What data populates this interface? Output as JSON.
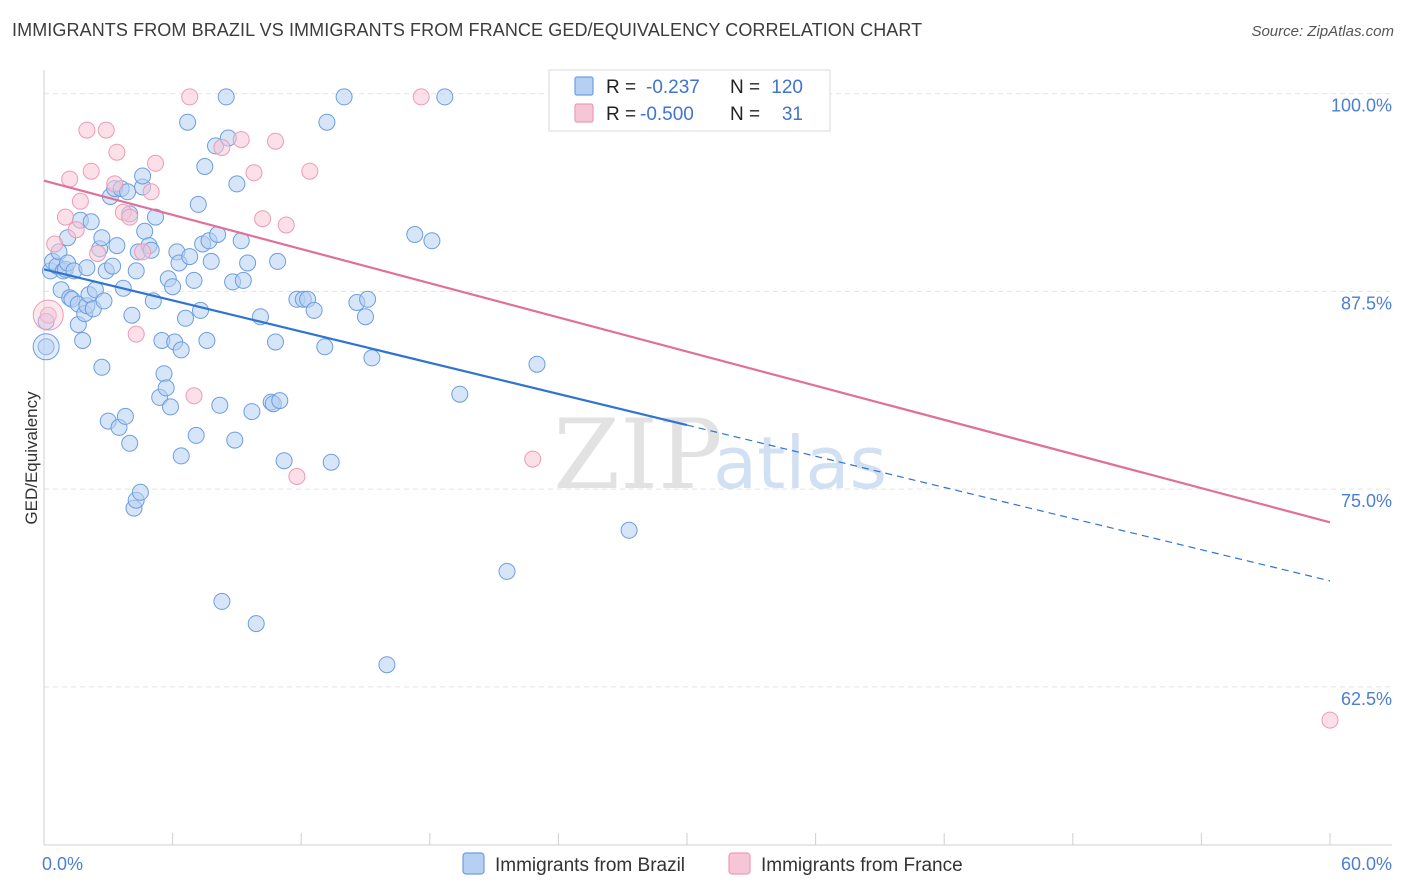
{
  "chart_data": {
    "type": "scatter",
    "title": "IMMIGRANTS FROM BRAZIL VS IMMIGRANTS FROM FRANCE GED/EQUIVALENCY CORRELATION CHART",
    "source": "Source: ZipAtlas.com",
    "xlabel": "",
    "ylabel": "GED/Equivalency",
    "xlim": [
      0,
      60
    ],
    "ylim": [
      52.5,
      101.5
    ],
    "x_tick_labels": [
      "0.0%",
      "60.0%"
    ],
    "y_ticks": [
      62.5,
      75.0,
      87.5,
      100.0
    ],
    "y_tick_labels": [
      "62.5%",
      "75.0%",
      "87.5%",
      "100.0%"
    ],
    "grid": true,
    "watermark": [
      "ZIP",
      "atlas"
    ],
    "legend_position": "bottom",
    "stats_box": {
      "r_label": "R =",
      "n_label": "N =",
      "rows": [
        {
          "r": "-0.237",
          "n": "120"
        },
        {
          "r": "-0.500",
          "n": "31"
        }
      ]
    },
    "series": [
      {
        "name": "Immigrants from Brazil",
        "color": "#6c9ee0",
        "fill": "#b7d0f2",
        "trend": {
          "x": [
            0,
            30,
            60
          ],
          "y": [
            88.9,
            78.8,
            69.2
          ],
          "solid_until": 30,
          "color": "#2f74d0"
        },
        "points": [
          [
            0.1,
            85.6
          ],
          [
            0.1,
            84.0
          ],
          [
            0.3,
            88.8
          ],
          [
            0.4,
            89.4
          ],
          [
            0.6,
            89.1
          ],
          [
            0.7,
            90.0
          ],
          [
            0.8,
            87.6
          ],
          [
            0.9,
            88.8
          ],
          [
            1.0,
            88.9
          ],
          [
            1.1,
            89.3
          ],
          [
            1.1,
            90.9
          ],
          [
            1.2,
            87.1
          ],
          [
            1.3,
            87.0
          ],
          [
            1.4,
            88.8
          ],
          [
            1.6,
            86.7
          ],
          [
            1.6,
            85.4
          ],
          [
            1.7,
            92.0
          ],
          [
            1.8,
            84.4
          ],
          [
            1.9,
            86.1
          ],
          [
            2.0,
            89.0
          ],
          [
            2.0,
            86.6
          ],
          [
            2.1,
            87.3
          ],
          [
            2.2,
            91.9
          ],
          [
            2.3,
            86.4
          ],
          [
            2.4,
            87.6
          ],
          [
            2.6,
            90.2
          ],
          [
            2.7,
            82.7
          ],
          [
            2.7,
            90.9
          ],
          [
            2.8,
            86.9
          ],
          [
            2.9,
            88.8
          ],
          [
            3.0,
            79.3
          ],
          [
            3.1,
            93.5
          ],
          [
            3.2,
            89.1
          ],
          [
            3.3,
            94.0
          ],
          [
            3.4,
            90.4
          ],
          [
            3.5,
            78.9
          ],
          [
            3.6,
            94.0
          ],
          [
            3.7,
            87.7
          ],
          [
            3.8,
            79.6
          ],
          [
            3.9,
            93.8
          ],
          [
            4.0,
            77.9
          ],
          [
            4.0,
            92.4
          ],
          [
            4.1,
            86.0
          ],
          [
            4.2,
            73.8
          ],
          [
            4.3,
            74.3
          ],
          [
            4.3,
            88.8
          ],
          [
            4.4,
            90.0
          ],
          [
            4.5,
            74.8
          ],
          [
            4.6,
            94.1
          ],
          [
            4.6,
            94.8
          ],
          [
            4.7,
            91.3
          ],
          [
            4.9,
            90.4
          ],
          [
            5.0,
            90.1
          ],
          [
            5.1,
            86.9
          ],
          [
            5.2,
            92.2
          ],
          [
            5.4,
            80.8
          ],
          [
            5.5,
            84.4
          ],
          [
            5.6,
            82.3
          ],
          [
            5.7,
            81.4
          ],
          [
            5.8,
            88.3
          ],
          [
            5.9,
            80.2
          ],
          [
            6.0,
            87.8
          ],
          [
            6.1,
            84.3
          ],
          [
            6.2,
            90.0
          ],
          [
            6.3,
            89.3
          ],
          [
            6.4,
            83.8
          ],
          [
            6.4,
            77.1
          ],
          [
            6.6,
            85.8
          ],
          [
            6.7,
            98.2
          ],
          [
            6.8,
            89.7
          ],
          [
            7.0,
            88.2
          ],
          [
            7.1,
            78.4
          ],
          [
            7.2,
            93.0
          ],
          [
            7.3,
            86.3
          ],
          [
            7.4,
            90.5
          ],
          [
            7.5,
            95.4
          ],
          [
            7.6,
            84.4
          ],
          [
            7.7,
            90.7
          ],
          [
            7.8,
            89.4
          ],
          [
            8.0,
            96.7
          ],
          [
            8.1,
            91.1
          ],
          [
            8.2,
            80.3
          ],
          [
            8.3,
            67.9
          ],
          [
            8.5,
            99.8
          ],
          [
            8.6,
            97.2
          ],
          [
            8.8,
            88.1
          ],
          [
            8.9,
            78.1
          ],
          [
            9.0,
            94.3
          ],
          [
            9.2,
            90.7
          ],
          [
            9.3,
            88.2
          ],
          [
            9.5,
            89.3
          ],
          [
            9.7,
            79.9
          ],
          [
            9.9,
            66.5
          ],
          [
            10.1,
            85.9
          ],
          [
            10.6,
            80.5
          ],
          [
            10.7,
            80.4
          ],
          [
            10.8,
            84.3
          ],
          [
            10.9,
            89.4
          ],
          [
            11.0,
            80.6
          ],
          [
            11.2,
            76.8
          ],
          [
            11.8,
            87.0
          ],
          [
            12.1,
            87.0
          ],
          [
            12.3,
            87.0
          ],
          [
            12.6,
            86.3
          ],
          [
            13.1,
            84.0
          ],
          [
            13.2,
            98.2
          ],
          [
            13.4,
            76.7
          ],
          [
            14.0,
            99.8
          ],
          [
            14.6,
            86.8
          ],
          [
            15.0,
            85.9
          ],
          [
            15.1,
            87.0
          ],
          [
            15.3,
            83.3
          ],
          [
            16.0,
            63.9
          ],
          [
            17.3,
            91.1
          ],
          [
            18.1,
            90.7
          ],
          [
            18.7,
            99.8
          ],
          [
            19.4,
            81.0
          ],
          [
            21.6,
            69.8
          ],
          [
            23.0,
            82.9
          ],
          [
            27.3,
            72.4
          ]
        ]
      },
      {
        "name": "Immigrants from France",
        "color": "#ee9ab7",
        "fill": "#f7c6d6",
        "trend": {
          "x": [
            0,
            60
          ],
          "y": [
            94.5,
            72.9
          ],
          "solid_until": 60,
          "color": "#e07099"
        },
        "points": [
          [
            0.2,
            86.0
          ],
          [
            0.5,
            90.5
          ],
          [
            1.0,
            92.2
          ],
          [
            1.2,
            94.6
          ],
          [
            1.5,
            91.4
          ],
          [
            1.7,
            93.2
          ],
          [
            2.0,
            97.7
          ],
          [
            2.2,
            95.1
          ],
          [
            2.5,
            89.9
          ],
          [
            2.9,
            97.7
          ],
          [
            3.3,
            94.3
          ],
          [
            3.4,
            96.3
          ],
          [
            3.7,
            92.5
          ],
          [
            4.0,
            92.2
          ],
          [
            4.3,
            84.8
          ],
          [
            4.6,
            90.0
          ],
          [
            5.0,
            93.8
          ],
          [
            5.2,
            95.6
          ],
          [
            6.8,
            99.8
          ],
          [
            7.0,
            80.9
          ],
          [
            8.3,
            96.6
          ],
          [
            9.2,
            97.1
          ],
          [
            9.8,
            95.0
          ],
          [
            10.2,
            92.1
          ],
          [
            10.8,
            97.0
          ],
          [
            11.3,
            91.7
          ],
          [
            11.8,
            75.8
          ],
          [
            12.4,
            95.1
          ],
          [
            17.6,
            99.8
          ],
          [
            22.8,
            76.9
          ],
          [
            60.0,
            60.4
          ]
        ]
      }
    ]
  }
}
